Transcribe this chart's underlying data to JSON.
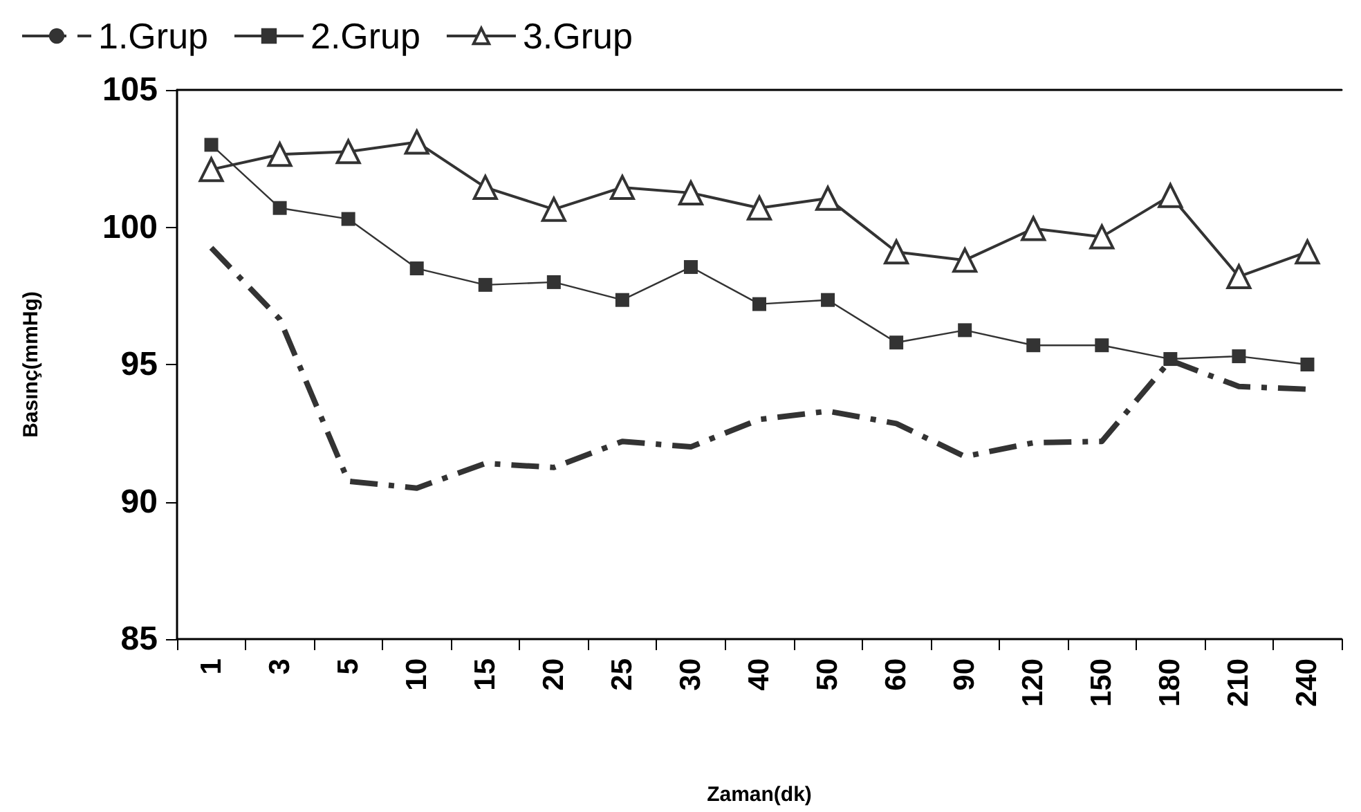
{
  "chart_data": {
    "type": "line",
    "xlabel": "Zaman(dk)",
    "ylabel": "Basınç(mmHg)",
    "categories": [
      "1",
      "3",
      "5",
      "10",
      "15",
      "20",
      "25",
      "30",
      "40",
      "50",
      "60",
      "90",
      "120",
      "150",
      "180",
      "210",
      "240"
    ],
    "series": [
      {
        "name": "1.Grup",
        "color": "#333333",
        "marker": "none",
        "line_style": "dashed",
        "values": [
          99.25,
          96.65,
          90.75,
          90.5,
          91.4,
          91.25,
          92.2,
          92.0,
          93.0,
          93.3,
          92.85,
          91.65,
          92.15,
          92.2,
          95.15,
          94.2,
          94.1
        ]
      },
      {
        "name": "2.Grup",
        "color": "#333333",
        "marker": "square",
        "line_style": "solid",
        "values": [
          103.0,
          100.7,
          100.3,
          98.5,
          97.9,
          98.0,
          97.35,
          98.55,
          97.2,
          97.35,
          95.8,
          96.25,
          95.7,
          95.7,
          95.2,
          95.3,
          95.0
        ]
      },
      {
        "name": "3.Grup",
        "color": "#333333",
        "marker": "triangle",
        "line_style": "solid",
        "values": [
          102.1,
          102.65,
          102.75,
          103.1,
          101.45,
          100.65,
          101.45,
          101.25,
          100.7,
          101.05,
          99.1,
          98.8,
          99.95,
          99.65,
          101.15,
          98.2,
          99.1
        ]
      }
    ],
    "ylim": [
      85,
      105
    ],
    "yticks": [
      85,
      90,
      95,
      100,
      105
    ],
    "grid": false,
    "legend": "top left"
  }
}
